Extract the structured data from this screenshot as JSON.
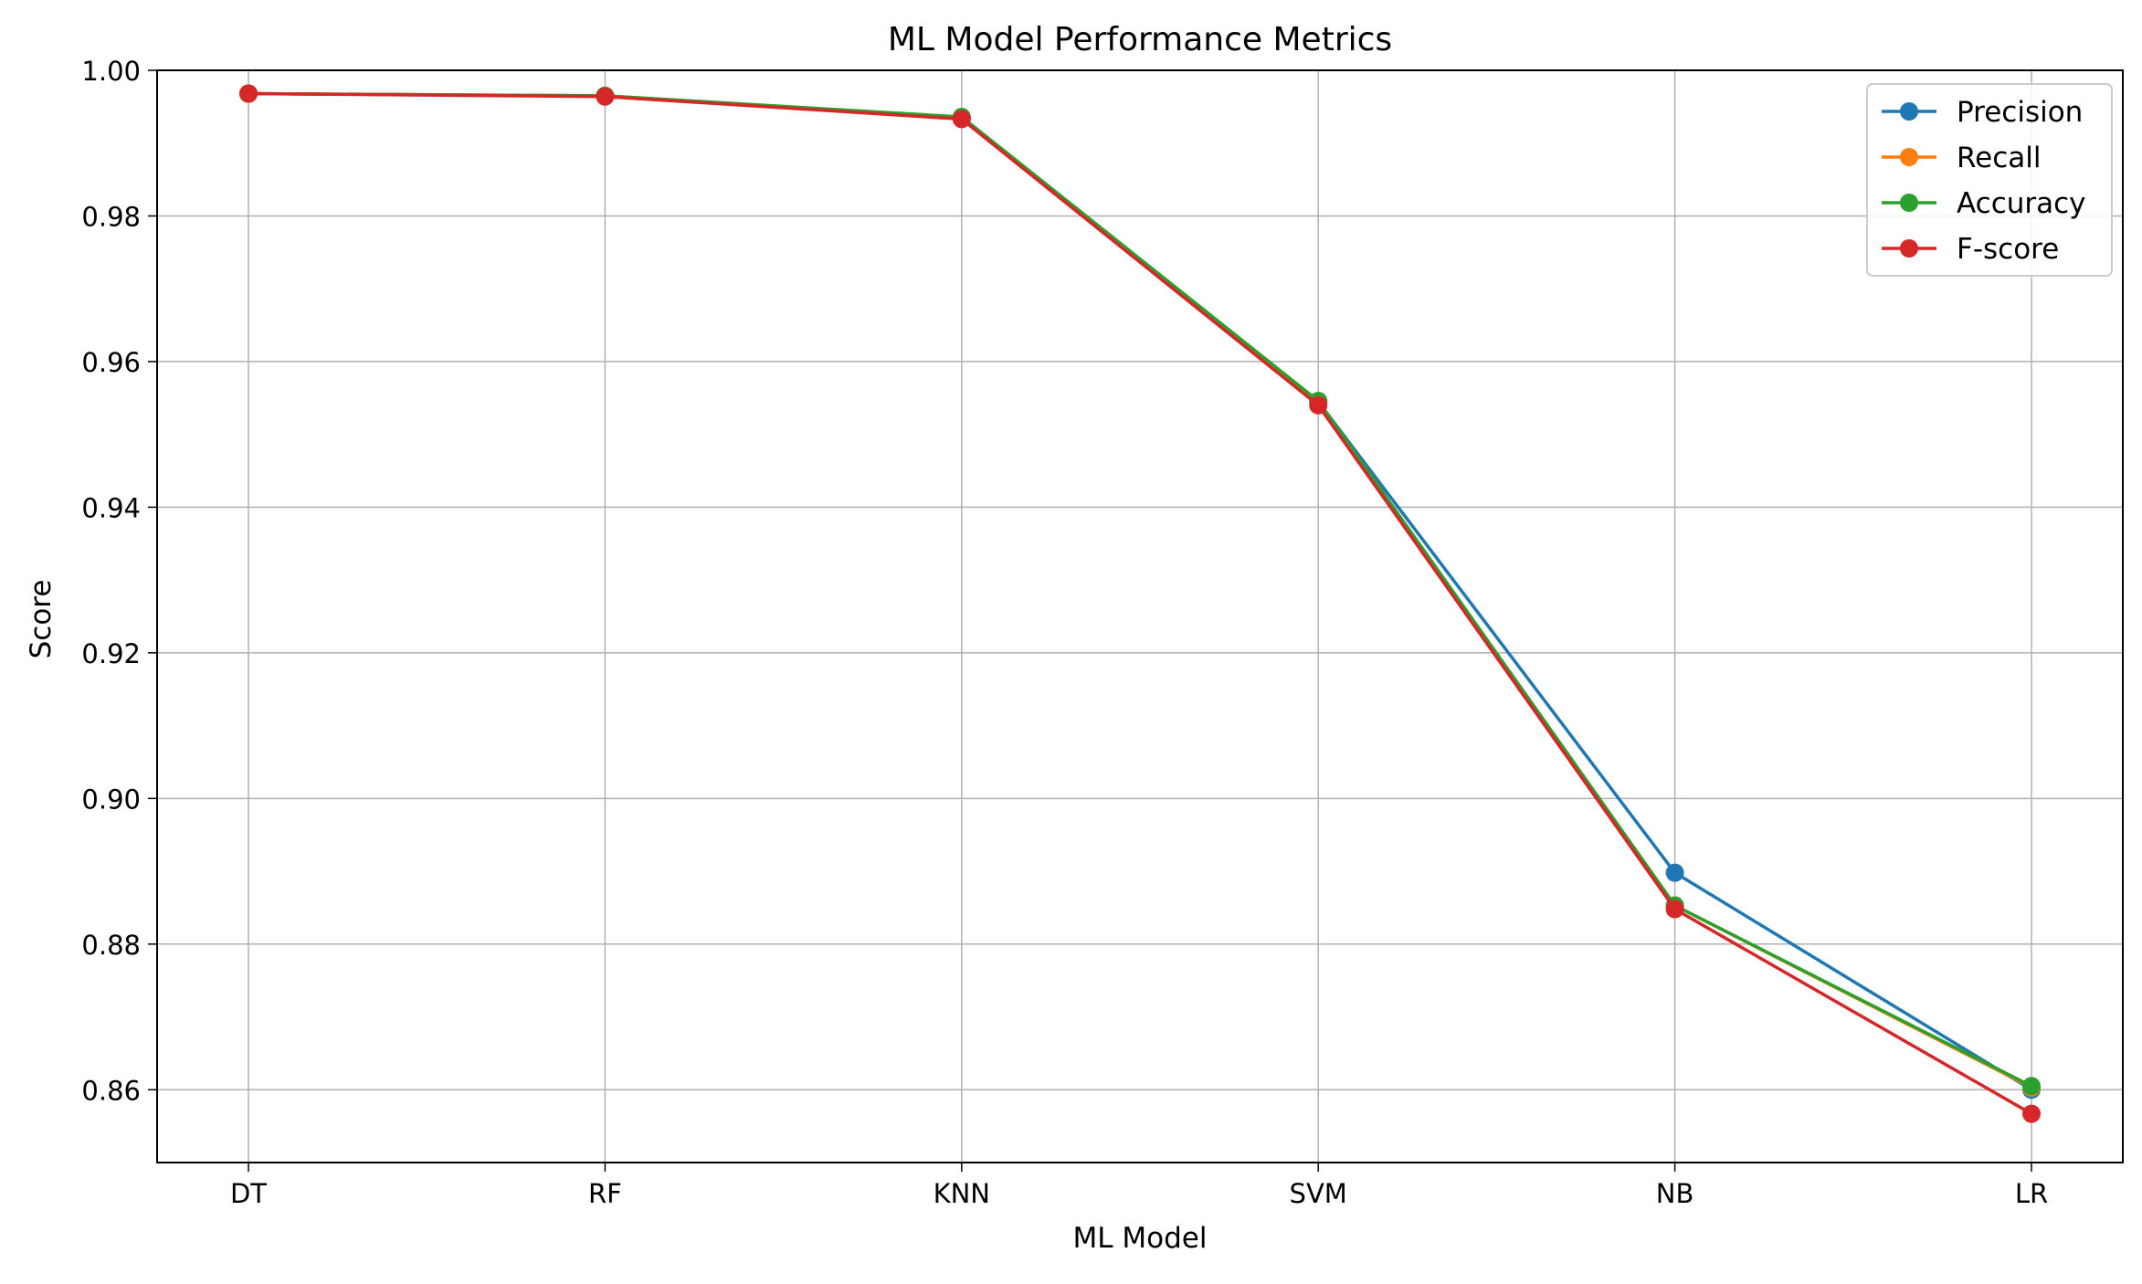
{
  "chart_data": {
    "type": "line",
    "title": "ML Model Performance Metrics",
    "xlabel": "ML Model",
    "ylabel": "Score",
    "categories": [
      "DT",
      "RF",
      "KNN",
      "SVM",
      "NB",
      "LR"
    ],
    "ylim": [
      0.85,
      1.0
    ],
    "yticks": [
      0.86,
      0.88,
      0.9,
      0.92,
      0.94,
      0.96,
      0.98,
      1.0
    ],
    "ytick_labels": [
      "0.86",
      "0.88",
      "0.90",
      "0.92",
      "0.94",
      "0.96",
      "0.98",
      "1.00"
    ],
    "grid": true,
    "legend_position": "top-right",
    "series": [
      {
        "name": "Precision",
        "color": "#1f77b4",
        "values": [
          0.9968,
          0.9965,
          0.9935,
          0.9545,
          0.8898,
          0.86
        ]
      },
      {
        "name": "Recall",
        "color": "#ff7f0e",
        "values": [
          0.9968,
          0.9965,
          0.9935,
          0.9545,
          0.8853,
          0.8603
        ]
      },
      {
        "name": "Accuracy",
        "color": "#2ca02c",
        "values": [
          0.9968,
          0.9965,
          0.9936,
          0.9546,
          0.8853,
          0.8605
        ]
      },
      {
        "name": "F-score",
        "color": "#d62728",
        "values": [
          0.9968,
          0.9964,
          0.9933,
          0.954,
          0.8848,
          0.8567
        ]
      }
    ]
  }
}
